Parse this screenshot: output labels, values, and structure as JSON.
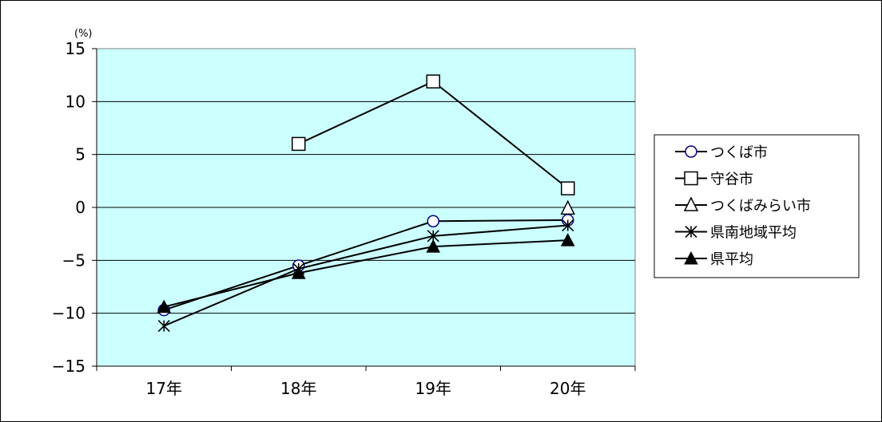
{
  "chart_data": {
    "type": "line",
    "title": "",
    "xlabel": "",
    "ylabel": "",
    "unit_label": "(%)",
    "categories": [
      "17年",
      "18年",
      "19年",
      "20年"
    ],
    "ylim": [
      -15,
      15
    ],
    "yticks": [
      15,
      10,
      5,
      0,
      -5,
      -10,
      -15
    ],
    "grid": "horizontal",
    "plot_background": "#ccffff",
    "legend_position": "right",
    "series": [
      {
        "name": "つくば市",
        "marker": "circle-open",
        "marker_color": "#000080",
        "values": [
          -9.7,
          -5.5,
          -1.3,
          -1.2
        ]
      },
      {
        "name": "守谷市",
        "marker": "square-open",
        "marker_color": "#000000",
        "values": [
          null,
          6.0,
          11.9,
          1.8
        ]
      },
      {
        "name": "つくばみらい市",
        "marker": "triangle-open",
        "marker_color": "#000000",
        "values": [
          null,
          null,
          null,
          -0.1
        ]
      },
      {
        "name": "県南地域平均",
        "marker": "star",
        "marker_color": "#000000",
        "values": [
          -11.2,
          -5.8,
          -2.7,
          -1.7
        ]
      },
      {
        "name": "県平均",
        "marker": "triangle-filled",
        "marker_color": "#000000",
        "values": [
          -9.4,
          -6.2,
          -3.7,
          -3.1
        ]
      }
    ]
  }
}
